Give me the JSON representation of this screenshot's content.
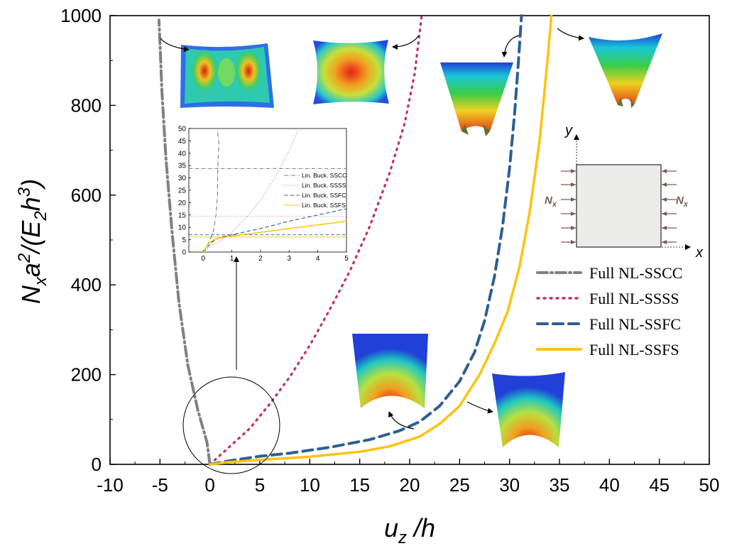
{
  "chart_data": [
    {
      "type": "line",
      "xlabel": "u_z /h",
      "ylabel": "N_x a^2/(E_2 h^3)",
      "xlim": [
        -10,
        50
      ],
      "ylim": [
        0,
        1000
      ],
      "x_ticks": [
        "-10",
        "-5",
        "0",
        "5",
        "10",
        "15",
        "20",
        "25",
        "30",
        "35",
        "40",
        "45",
        "50"
      ],
      "y_ticks": [
        "0",
        "200",
        "400",
        "600",
        "800",
        "1000"
      ],
      "legend_position": "right",
      "series": [
        {
          "name": "Full NL-SSCC",
          "color": "#808080",
          "style": "dashdot",
          "x": [
            0,
            -0.3,
            -1.2,
            -2.2,
            -3.1,
            -3.8,
            -4.4,
            -4.8,
            -5.0,
            -5.1
          ],
          "y": [
            0,
            50,
            120,
            220,
            360,
            520,
            680,
            830,
            940,
            990
          ]
        },
        {
          "name": "Full NL-SSSS",
          "color": "#c0306a",
          "style": "dotted",
          "x": [
            0,
            1,
            2,
            4,
            6,
            8,
            10,
            12,
            14,
            16,
            18,
            19.5,
            20.5,
            21.2
          ],
          "y": [
            0,
            20,
            40,
            80,
            135,
            195,
            265,
            345,
            430,
            530,
            650,
            760,
            870,
            1000
          ]
        },
        {
          "name": "Full NL-SSFC",
          "color": "#2c5f91",
          "style": "dashed",
          "x": [
            0,
            2,
            5,
            8,
            12,
            16,
            19,
            21,
            23,
            25,
            26.5,
            27.5,
            28.5,
            29.3,
            30,
            30.5,
            30.9,
            31.2
          ],
          "y": [
            0,
            8,
            18,
            25,
            38,
            55,
            75,
            95,
            130,
            185,
            250,
            320,
            420,
            530,
            660,
            780,
            900,
            1000
          ]
        },
        {
          "name": "Full NL-SSFS",
          "color": "#ffc20e",
          "style": "solid",
          "x": [
            0,
            2,
            5,
            10,
            15,
            18,
            21,
            23,
            25,
            27,
            28.5,
            29.8,
            31,
            32,
            33,
            33.8,
            34.2
          ],
          "y": [
            0,
            5,
            10,
            17,
            28,
            40,
            62,
            90,
            130,
            200,
            270,
            340,
            440,
            560,
            720,
            900,
            1000
          ]
        }
      ]
    },
    {
      "type": "line",
      "title": "",
      "xlim": [
        -0.5,
        5
      ],
      "ylim": [
        0,
        50
      ],
      "x_ticks": [
        "0",
        "1",
        "2",
        "3",
        "4",
        "5"
      ],
      "y_ticks": [
        "0",
        "5",
        "10",
        "15",
        "20",
        "25",
        "30",
        "35",
        "40",
        "45",
        "50"
      ],
      "legend_position": "middle-right",
      "series": [
        {
          "name": "Lin. Buck. SSCC",
          "color": "#777777",
          "style": "dashdot",
          "x": [
            0,
            0.2,
            0.35,
            0.45,
            0.5,
            0.5,
            0.52,
            0.55,
            0.5,
            0.5
          ],
          "y": [
            0,
            4,
            8,
            15,
            23,
            30,
            38,
            44,
            49,
            50
          ]
        },
        {
          "name": "Lin. Buck. SSSS",
          "color": "#c0306a",
          "style": "dotted",
          "x": [
            0,
            0.5,
            1,
            1.5,
            2,
            2.5,
            3,
            3.3
          ],
          "y": [
            0,
            4,
            8,
            14,
            21,
            30,
            41,
            49
          ]
        },
        {
          "name": "Lin. Buck. SSFC",
          "color": "#2c5f91",
          "style": "dashed",
          "x": [
            0,
            0.3,
            0.6,
            1,
            2,
            3,
            4,
            5
          ],
          "y": [
            0,
            4,
            6,
            7,
            9.5,
            12.5,
            15,
            17.5
          ]
        },
        {
          "name": "Lin. Buck. SSFS",
          "color": "#ffc20e",
          "style": "solid",
          "x": [
            0,
            0.15,
            0.3,
            0.5,
            1,
            2,
            3,
            4,
            5
          ],
          "y": [
            0,
            3,
            4.5,
            5.5,
            6.5,
            8,
            9.5,
            11,
            12.5
          ]
        }
      ],
      "reference_levels": [
        {
          "series": "Lin. Buck. SSCC",
          "y": 33.8
        },
        {
          "series": "Lin. Buck. SSSS",
          "y": 14.5
        },
        {
          "series": "Lin. Buck. SSFC",
          "y": 7.0
        },
        {
          "series": "Lin. Buck. SSFS",
          "y": 6.1
        }
      ]
    }
  ],
  "schematic": {
    "axis_x": "x",
    "axis_y": "y",
    "load_left": "N_x",
    "load_right": "N_x"
  }
}
